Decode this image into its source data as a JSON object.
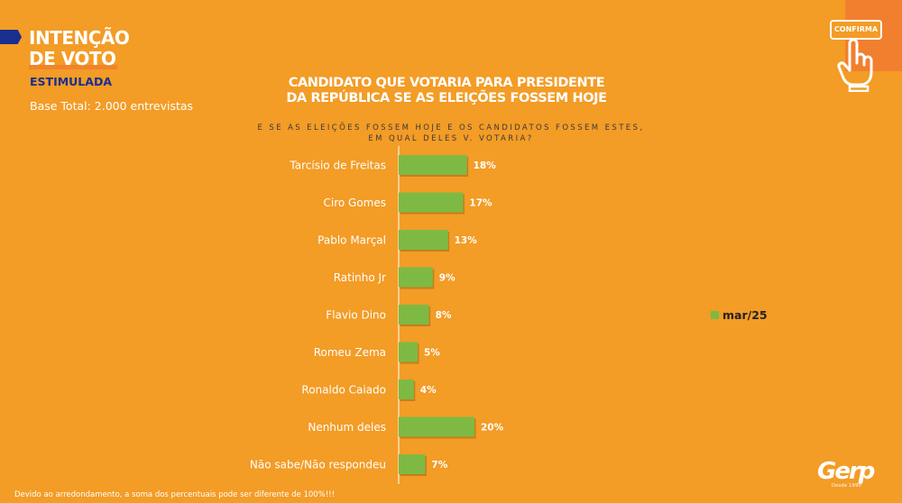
{
  "header": {
    "title_line1": "INTENÇÃO",
    "title_line2": "DE VOTO",
    "subtitle": "ESTIMULADA",
    "base_total": "Base Total: 2.000 entrevistas"
  },
  "chart_title": {
    "line1": "CANDIDATO QUE VOTARIA PARA PRESIDENTE",
    "line2": "DA REPÚBLICA SE AS ELEIÇÕES FOSSEM HOJE"
  },
  "question": {
    "line1": "E SE AS ELEIÇÕES FOSSEM HOJE E OS CANDIDATOS FOSSEM ESTES,",
    "line2": "EM QUAL DELES V. VOTARIA?"
  },
  "badge": {
    "label": "CONFIRMA",
    "icon": "pointing-hand-icon"
  },
  "legend": {
    "label": "mar/25"
  },
  "footnote": "Devido ao arredondamento, a soma dos percentuais pode ser diferente de 100%!!!",
  "logo": {
    "text": "Gerp",
    "sub": "Desde 1990"
  },
  "colors": {
    "background": "#F39C26",
    "bar": "#7EBA43",
    "accent_blue": "#1A2E8F"
  },
  "chart_data": {
    "type": "bar",
    "orientation": "horizontal",
    "categories": [
      "Tarcísio de Freitas",
      "Ciro Gomes",
      "Pablo Marçal",
      "Ratinho Jr",
      "Flavio Dino",
      "Romeu Zema",
      "Ronaldo Caiado",
      "Nenhum deles",
      "Não sabe/Não respondeu"
    ],
    "series": [
      {
        "name": "mar/25",
        "values": [
          18,
          17,
          13,
          9,
          8,
          5,
          4,
          20,
          7
        ]
      }
    ],
    "value_labels": [
      "18%",
      "17%",
      "13%",
      "9%",
      "8%",
      "5%",
      "4%",
      "20%",
      "7%"
    ],
    "xlim": [
      0,
      20
    ],
    "grid": false,
    "legend_position": "right"
  }
}
